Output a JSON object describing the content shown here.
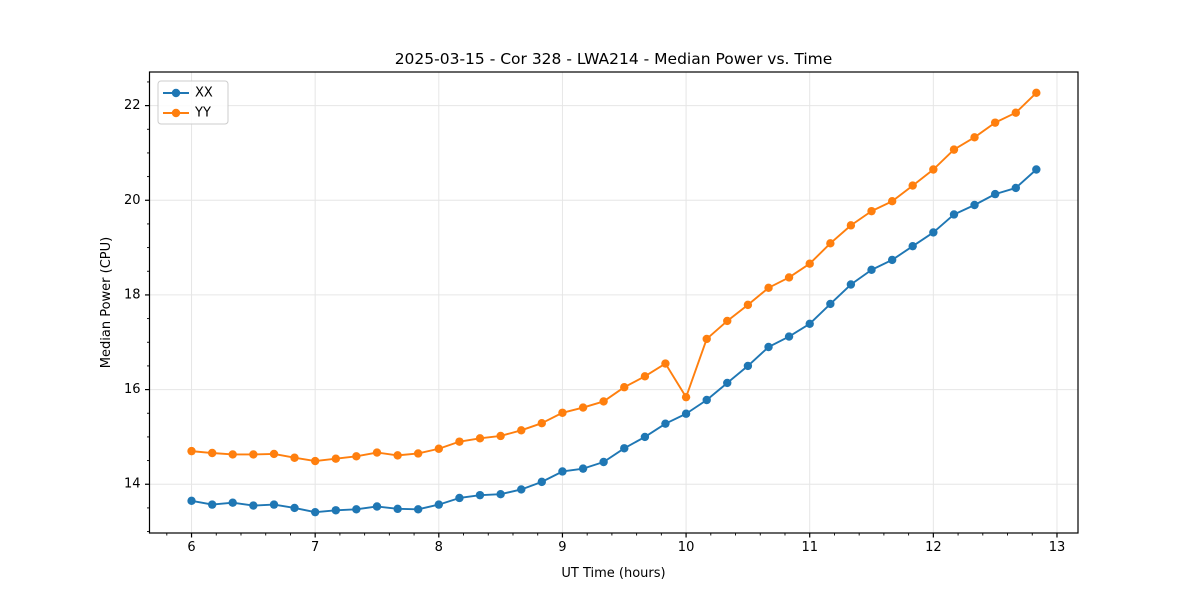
{
  "figure": {
    "background": "#ffffff",
    "spine_color": "#000000",
    "grid_color": "#e6e6e6"
  },
  "chart_data": {
    "type": "line",
    "title": "2025-03-15 - Cor 328 - LWA214 - Median Power vs. Time",
    "xlabel": "UT Time (hours)",
    "ylabel": "Median Power (CPU)",
    "xlim": [
      5.66,
      13.17
    ],
    "ylim": [
      12.97,
      22.71
    ],
    "x_ticks": [
      6,
      7,
      8,
      9,
      10,
      11,
      12,
      13
    ],
    "y_ticks": [
      14,
      16,
      18,
      20,
      22
    ],
    "x_minor_step": 0.2,
    "y_minor_step": 0.5,
    "grid": true,
    "legend_position": "upper left",
    "x": [
      6.0,
      6.167,
      6.333,
      6.5,
      6.667,
      6.833,
      7.0,
      7.167,
      7.333,
      7.5,
      7.667,
      7.833,
      8.0,
      8.167,
      8.333,
      8.5,
      8.667,
      8.833,
      9.0,
      9.167,
      9.333,
      9.5,
      9.667,
      9.833,
      10.0,
      10.167,
      10.333,
      10.5,
      10.667,
      10.833,
      11.0,
      11.167,
      11.333,
      11.5,
      11.667,
      11.833,
      12.0,
      12.167,
      12.333,
      12.5,
      12.667,
      12.833
    ],
    "series": [
      {
        "name": "XX",
        "color": "#1f77b4",
        "values": [
          13.65,
          13.57,
          13.61,
          13.55,
          13.57,
          13.5,
          13.41,
          13.45,
          13.47,
          13.53,
          13.48,
          13.47,
          13.57,
          13.71,
          13.77,
          13.79,
          13.89,
          14.05,
          14.27,
          14.33,
          14.47,
          14.76,
          15.0,
          15.28,
          15.49,
          15.78,
          16.14,
          16.5,
          16.9,
          17.12,
          17.39,
          17.81,
          18.22,
          18.53,
          18.74,
          19.03,
          19.32,
          19.7,
          19.9,
          20.13,
          20.26,
          20.65
        ]
      },
      {
        "name": "YY",
        "color": "#ff7f0e",
        "values": [
          14.7,
          14.66,
          14.63,
          14.63,
          14.64,
          14.56,
          14.49,
          14.54,
          14.59,
          14.67,
          14.61,
          14.65,
          14.75,
          14.9,
          14.97,
          15.02,
          15.14,
          15.29,
          15.51,
          15.62,
          15.75,
          16.05,
          16.28,
          16.55,
          15.84,
          17.07,
          17.45,
          17.79,
          18.15,
          18.37,
          18.66,
          19.09,
          19.47,
          19.77,
          19.98,
          20.31,
          20.65,
          21.07,
          21.33,
          21.64,
          21.85,
          22.27
        ]
      }
    ]
  }
}
